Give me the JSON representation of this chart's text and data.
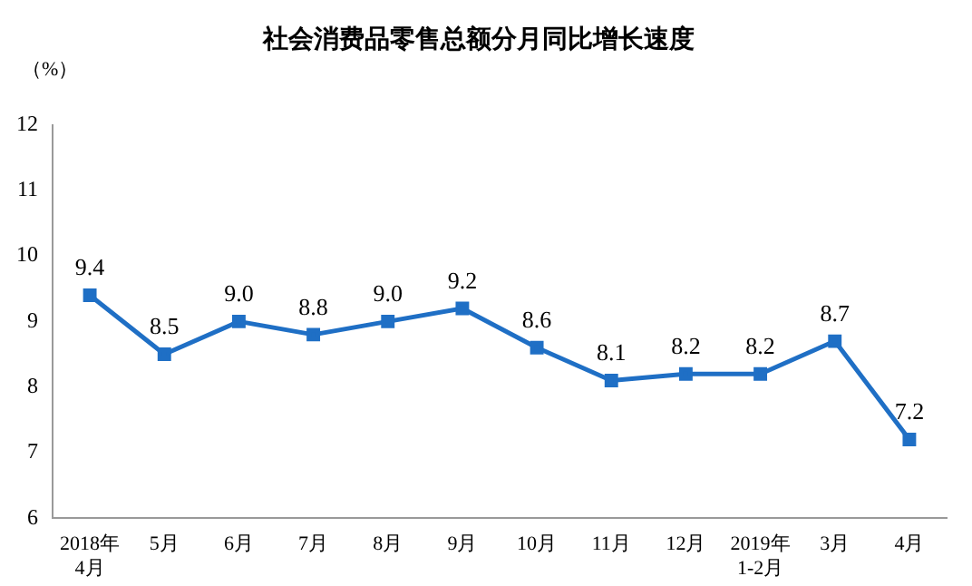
{
  "chart_data": {
    "type": "line",
    "title": "社会消费品零售总额分月同比增长速度",
    "ylabel": "（%）",
    "categories": [
      "2018年\n4月",
      "5月",
      "6月",
      "7月",
      "8月",
      "9月",
      "10月",
      "11月",
      "12月",
      "2019年\n1-2月",
      "3月",
      "4月"
    ],
    "series": [
      {
        "color": "#1f6fc5",
        "values": [
          9.4,
          8.5,
          9.0,
          8.8,
          9.0,
          9.2,
          8.6,
          8.1,
          8.2,
          8.2,
          8.7,
          7.2
        ],
        "value_labels": [
          "9.4",
          "8.5",
          "9.0",
          "8.8",
          "9.0",
          "9.2",
          "8.6",
          "8.1",
          "8.2",
          "8.2",
          "8.7",
          "7.2"
        ]
      }
    ],
    "ylim": [
      6,
      12
    ],
    "yticks": [
      6,
      7,
      8,
      9,
      10,
      11,
      12
    ],
    "grid": false,
    "legend": false,
    "marker": "square",
    "line_style": "solid"
  }
}
